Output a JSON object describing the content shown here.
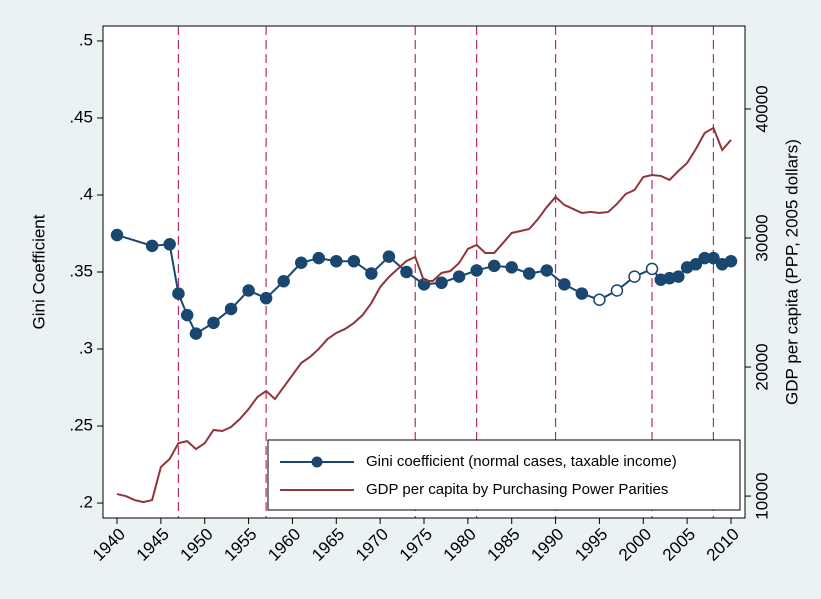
{
  "chart_data": {
    "type": "line",
    "ylabel": "Gini Coefficient",
    "y2label": "GDP per capita (PPP, 2005 dollars)",
    "xlim": [
      1938.4,
      2011.6
    ],
    "xticks": [
      1940,
      1945,
      1950,
      1955,
      1960,
      1965,
      1970,
      1975,
      1980,
      1985,
      1990,
      1995,
      2000,
      2005,
      2010
    ],
    "ylim": [
      0.1903,
      0.5097
    ],
    "yticks": [
      {
        "value": 0.2,
        "label": ".2"
      },
      {
        "value": 0.25,
        "label": ".25"
      },
      {
        "value": 0.3,
        "label": ".3"
      },
      {
        "value": 0.35,
        "label": ".35"
      },
      {
        "value": 0.4,
        "label": ".4"
      },
      {
        "value": 0.45,
        "label": ".45"
      },
      {
        "value": 0.5,
        "label": ".5"
      }
    ],
    "y2lim": [
      8300,
      46430
    ],
    "y2ticks": [
      10000,
      20000,
      30000,
      40000
    ],
    "vlines": [
      1947,
      1957,
      1974,
      1981,
      1990,
      2001,
      2008
    ],
    "vline_color": "#b0306a",
    "legend": "bottom-right",
    "series": [
      {
        "name": "Gini coefficient (normal cases, taxable income)",
        "color": "#1a476f",
        "x": [
          1940,
          1944,
          1946,
          1947,
          1948,
          1949,
          1951,
          1953,
          1955,
          1957,
          1959,
          1961,
          1963,
          1965,
          1967,
          1969,
          1971,
          1973,
          1975,
          1977,
          1979,
          1981,
          1983,
          1985,
          1987,
          1989,
          1991,
          1993,
          1995,
          1997,
          1999,
          2001,
          2002,
          2003,
          2004,
          2005,
          2006,
          2007,
          2008,
          2009,
          2010
        ],
        "values": [
          0.374,
          0.367,
          0.368,
          0.336,
          0.322,
          0.31,
          0.317,
          0.326,
          0.338,
          0.333,
          0.344,
          0.356,
          0.359,
          0.357,
          0.357,
          0.349,
          0.36,
          0.35,
          0.342,
          0.343,
          0.347,
          0.351,
          0.354,
          0.353,
          0.349,
          0.351,
          0.342,
          0.336,
          0.332,
          0.338,
          0.347,
          0.352,
          0.345,
          0.346,
          0.347,
          0.353,
          0.355,
          0.359,
          0.359,
          0.355,
          0.357
        ],
        "markers": [
          "filled",
          "filled",
          "filled",
          "filled",
          "filled",
          "filled",
          "filled",
          "filled",
          "filled",
          "filled",
          "filled",
          "filled",
          "filled",
          "filled",
          "filled",
          "filled",
          "filled",
          "filled",
          "filled",
          "filled",
          "filled",
          "filled",
          "filled",
          "filled",
          "filled",
          "filled",
          "filled",
          "filled",
          "hollow",
          "hollow",
          "hollow",
          "hollow",
          "filled",
          "filled",
          "filled",
          "filled",
          "filled",
          "filled",
          "filled",
          "filled",
          "filled"
        ]
      },
      {
        "name": "GDP per capita by Purchasing Power Parities",
        "color": "#90353b",
        "axis": "y2",
        "x": [
          1940,
          1941,
          1942,
          1943,
          1944,
          1945,
          1946,
          1947,
          1948,
          1949,
          1950,
          1951,
          1952,
          1953,
          1954,
          1955,
          1956,
          1957,
          1958,
          1959,
          1960,
          1961,
          1962,
          1963,
          1964,
          1965,
          1966,
          1967,
          1968,
          1969,
          1970,
          1971,
          1972,
          1973,
          1974,
          1975,
          1976,
          1977,
          1978,
          1979,
          1980,
          1981,
          1982,
          1983,
          1984,
          1985,
          1986,
          1987,
          1988,
          1989,
          1990,
          1991,
          1992,
          1993,
          1994,
          1995,
          1996,
          1997,
          1998,
          1999,
          2000,
          2001,
          2002,
          2003,
          2004,
          2005,
          2006,
          2007,
          2008,
          2009,
          2010
        ],
        "values": [
          10155,
          10000,
          9690,
          9535,
          9690,
          12250,
          12870,
          14100,
          14260,
          13640,
          14100,
          15120,
          15040,
          15350,
          15970,
          16740,
          17670,
          18140,
          17520,
          18450,
          19380,
          20310,
          20780,
          21400,
          22170,
          22640,
          22950,
          23410,
          24030,
          24960,
          26200,
          26980,
          27600,
          28220,
          28530,
          26670,
          26670,
          27290,
          27440,
          28060,
          29150,
          29460,
          28840,
          28840,
          29610,
          30390,
          30540,
          30700,
          31470,
          32400,
          33180,
          32560,
          32250,
          31940,
          32020,
          31940,
          32020,
          32640,
          33410,
          33720,
          34730,
          34880,
          34810,
          34500,
          35190,
          35810,
          36900,
          38140,
          38530,
          36820,
          37600
        ]
      }
    ]
  }
}
